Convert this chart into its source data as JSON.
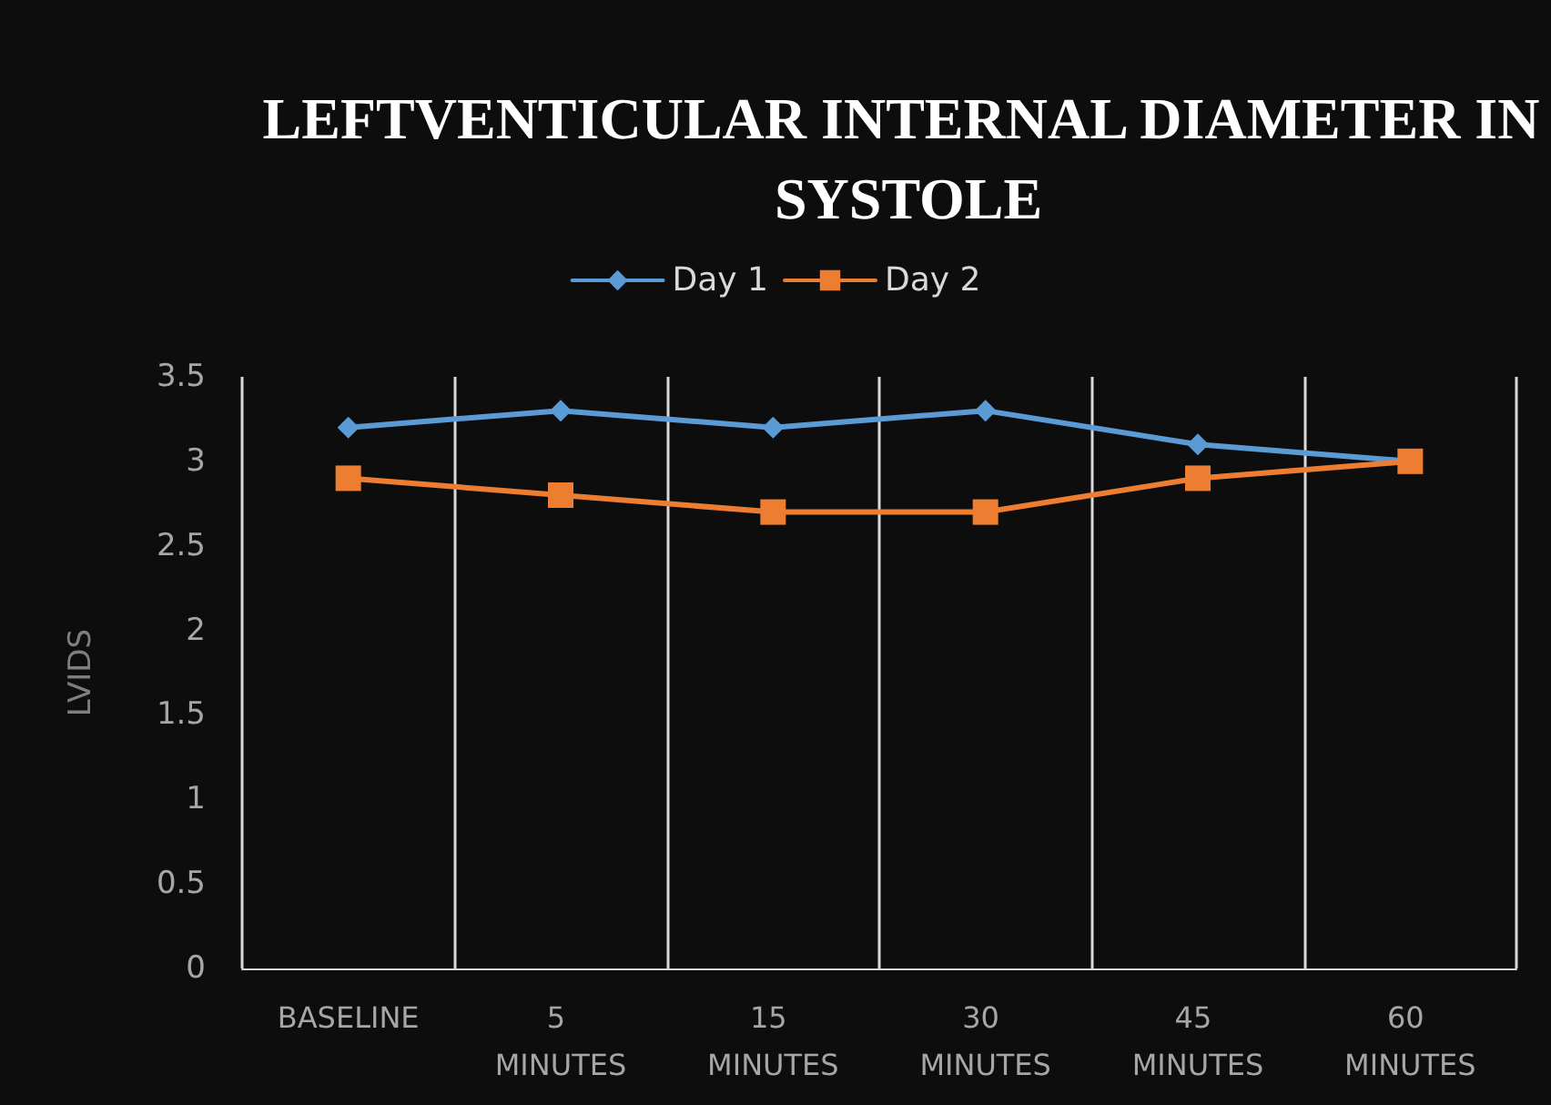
{
  "chart_data": {
    "type": "line",
    "title": "LEFTVENTICULAR INTERNAL DIAMETER IN SYSTOLE",
    "ylabel": "LVIDS",
    "categories": [
      "BASELINE",
      "5 MINUTES",
      "15 MINUTES",
      "30 MINUTES",
      "45 MINUTES",
      "60 MINUTES"
    ],
    "series": [
      {
        "name": "Day 1",
        "color": "#5b9bd5",
        "marker": "diamond",
        "values": [
          3.2,
          3.3,
          3.2,
          3.3,
          3.1,
          3.0
        ]
      },
      {
        "name": "Day 2",
        "color": "#ed7d31",
        "marker": "square",
        "values": [
          2.9,
          2.8,
          2.7,
          2.7,
          2.9,
          3.0
        ]
      }
    ],
    "ylim": [
      0,
      3.5
    ],
    "yticks": [
      0,
      0.5,
      1,
      1.5,
      2,
      2.5,
      3,
      3.5
    ],
    "grid": "x",
    "legend": "top"
  }
}
